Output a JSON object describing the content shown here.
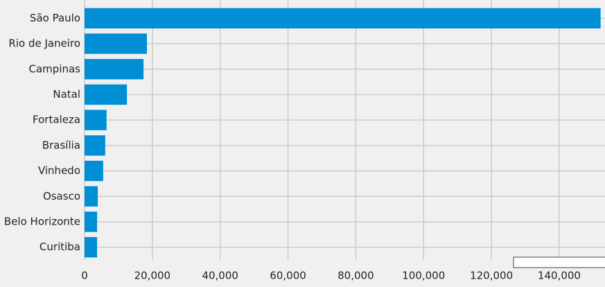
{
  "chart_data": {
    "type": "barh",
    "categories": [
      "São Paulo",
      "Rio de Janeiro",
      "Campinas",
      "Natal",
      "Fortaleza",
      "Brasília",
      "Vinhedo",
      "Osasco",
      "Belo Horizonte",
      "Curitiba"
    ],
    "values": [
      152200,
      18400,
      17400,
      12500,
      6500,
      6100,
      5500,
      3900,
      3700,
      3700
    ],
    "color": "#008fd5",
    "xlim": [
      0,
      153500
    ],
    "xticks": [
      0,
      {
        "value": 20000,
        "label": "20,000"
      },
      {
        "value": 40000,
        "label": "40,000"
      },
      {
        "value": 60000,
        "label": "60,000"
      },
      {
        "value": 80000,
        "label": "80,000"
      },
      {
        "value": 100000,
        "label": "100,000"
      },
      {
        "value": 120000,
        "label": "120,000"
      },
      {
        "value": 140000,
        "label": "140,000"
      }
    ],
    "grid": true
  }
}
